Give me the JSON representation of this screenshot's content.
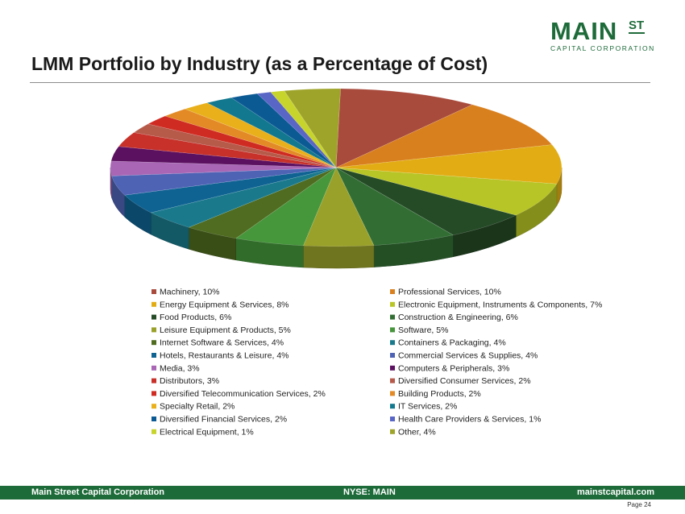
{
  "logo": {
    "main": "MAIN",
    "st": "ST",
    "sub": "CAPITAL CORPORATION"
  },
  "title": "LMM Portfolio by Industry (as a Percentage of Cost)",
  "footer": {
    "left": "Main Street Capital Corporation",
    "middle": "NYSE: MAIN",
    "right": "mainstcapital.com"
  },
  "page_label": "Page  24",
  "chart_data": {
    "type": "pie",
    "title": "LMM Portfolio by Industry (as a Percentage of Cost)",
    "unit": "%",
    "legend_position": "bottom",
    "slices": [
      {
        "label": "Machinery",
        "value": 10,
        "legend": "Machinery, 10%",
        "color": "#a84a3c"
      },
      {
        "label": "Professional Services",
        "value": 10,
        "legend": "Professional Services, 10%",
        "color": "#d9801e"
      },
      {
        "label": "Energy Equipment & Services",
        "value": 8,
        "legend": "Energy Equipment & Services, 8%",
        "color": "#e2ad14"
      },
      {
        "label": "Electronic Equipment, Instruments & Components",
        "value": 7,
        "legend": "Electronic Equipment, Instruments & Components, 7%",
        "color": "#b8c526"
      },
      {
        "label": "Food Products",
        "value": 6,
        "legend": "Food Products, 6%",
        "color": "#254a26"
      },
      {
        "label": "Construction & Engineering",
        "value": 6,
        "legend": "Construction & Engineering, 6%",
        "color": "#326e34"
      },
      {
        "label": "Leisure Equipment & Products",
        "value": 5,
        "legend": "Leisure Equipment & Products, 5%",
        "color": "#9aa12a"
      },
      {
        "label": "Software",
        "value": 5,
        "legend": "Software, 5%",
        "color": "#46963c"
      },
      {
        "label": "Internet Software & Services",
        "value": 4,
        "legend": "Internet Software & Services, 4%",
        "color": "#4f6c20"
      },
      {
        "label": "Containers & Packaging",
        "value": 4,
        "legend": "Containers & Packaging, 4%",
        "color": "#1a7a8c"
      },
      {
        "label": "Hotels, Restaurants & Leisure",
        "value": 4,
        "legend": "Hotels, Restaurants & Leisure, 4%",
        "color": "#0f6392"
      },
      {
        "label": "Commercial Services & Supplies",
        "value": 4,
        "legend": "Commercial Services & Supplies, 4%",
        "color": "#4f63b5"
      },
      {
        "label": "Media",
        "value": 3,
        "legend": "Media, 3%",
        "color": "#a866b5"
      },
      {
        "label": "Computers & Peripherals",
        "value": 3,
        "legend": "Computers & Peripherals, 3%",
        "color": "#5c1060"
      },
      {
        "label": "Distributors",
        "value": 3,
        "legend": "Distributors, 3%",
        "color": "#c7312a"
      },
      {
        "label": "Diversified Consumer Services",
        "value": 2,
        "legend": "Diversified Consumer Services, 2%",
        "color": "#b65a4a"
      },
      {
        "label": "Diversified Telecommunication Services",
        "value": 2,
        "legend": "Diversified Telecommunication Services, 2%",
        "color": "#cf2b22"
      },
      {
        "label": "Building Products",
        "value": 2,
        "legend": "Building Products, 2%",
        "color": "#e38a26"
      },
      {
        "label": "Specialty Retail",
        "value": 2,
        "legend": "Specialty Retail, 2%",
        "color": "#e9b01c"
      },
      {
        "label": "IT Services",
        "value": 2,
        "legend": "IT Services, 2%",
        "color": "#12788f"
      },
      {
        "label": "Diversified Financial Services",
        "value": 2,
        "legend": "Diversified Financial Services, 2%",
        "color": "#0c5a94"
      },
      {
        "label": "Health Care Providers & Services",
        "value": 1,
        "legend": "Health Care Providers & Services, 1%",
        "color": "#5a66c6"
      },
      {
        "label": "Electrical Equipment",
        "value": 1,
        "legend": "Electrical Equipment, 1%",
        "color": "#c7d42c"
      },
      {
        "label": "Other",
        "value": 4,
        "legend": "Other, 4%",
        "color": "#9ea42a"
      }
    ]
  }
}
